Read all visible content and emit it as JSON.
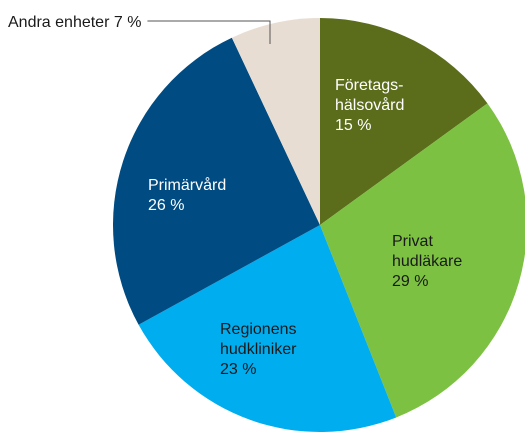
{
  "chart_data": {
    "type": "pie",
    "categories": [
      "Företags-\nhälsovård",
      "Privat\nhudläkare",
      "Regionens\nhudkliniker",
      "Primärvård",
      "Andra enheter"
    ],
    "values": [
      15,
      29,
      23,
      26,
      7
    ],
    "value_labels": [
      "15 %",
      "29 %",
      "23 %",
      "26 %",
      "7 %"
    ],
    "colors": [
      "#5b6d1b",
      "#7dc142",
      "#00adef",
      "#004b82",
      "#e8ddd3"
    ]
  }
}
